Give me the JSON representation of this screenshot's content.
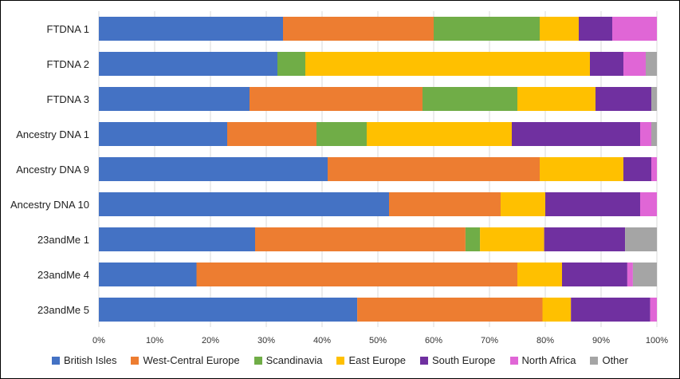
{
  "chart_data": {
    "type": "bar",
    "orientation": "horizontal",
    "stacked": true,
    "categories": [
      "FTDNA 1",
      "FTDNA 2",
      "FTDNA 3",
      "Ancestry DNA 1",
      "Ancestry DNA 9",
      "Ancestry DNA 10",
      "23andMe 1",
      "23andMe 4",
      "23andMe 5"
    ],
    "series": [
      {
        "name": "British Isles",
        "color": "#4472C4",
        "values": [
          33,
          32,
          27,
          23,
          41,
          52,
          28,
          17.5,
          46.3
        ]
      },
      {
        "name": "West-Central Europe",
        "color": "#ED7D31",
        "values": [
          27,
          0,
          31,
          16,
          38,
          20,
          37.7,
          57.5,
          33.2
        ]
      },
      {
        "name": "Scandinavia",
        "color": "#70AD47",
        "values": [
          19,
          5,
          17,
          9,
          0,
          0,
          2.6,
          0,
          0
        ]
      },
      {
        "name": "East Europe",
        "color": "#FFC000",
        "values": [
          7,
          51,
          14,
          26,
          15,
          8,
          11.5,
          8,
          5.1
        ]
      },
      {
        "name": "South Europe",
        "color": "#7030A0",
        "values": [
          6,
          6,
          10,
          23,
          5,
          17,
          14.5,
          11.7,
          14.2
        ]
      },
      {
        "name": "North Africa",
        "color": "#E066D6",
        "values": [
          8,
          4,
          0,
          2,
          1,
          3,
          0,
          1,
          1.2
        ]
      },
      {
        "name": "Other",
        "color": "#A5A5A5",
        "values": [
          0,
          2,
          1,
          1,
          0,
          0,
          5.7,
          4.3,
          0
        ]
      }
    ],
    "xlim": [
      0,
      100
    ],
    "x_ticks": [
      "0%",
      "10%",
      "20%",
      "30%",
      "40%",
      "50%",
      "60%",
      "70%",
      "80%",
      "90%",
      "100%"
    ],
    "grid": "vertical",
    "legend_position": "bottom"
  }
}
